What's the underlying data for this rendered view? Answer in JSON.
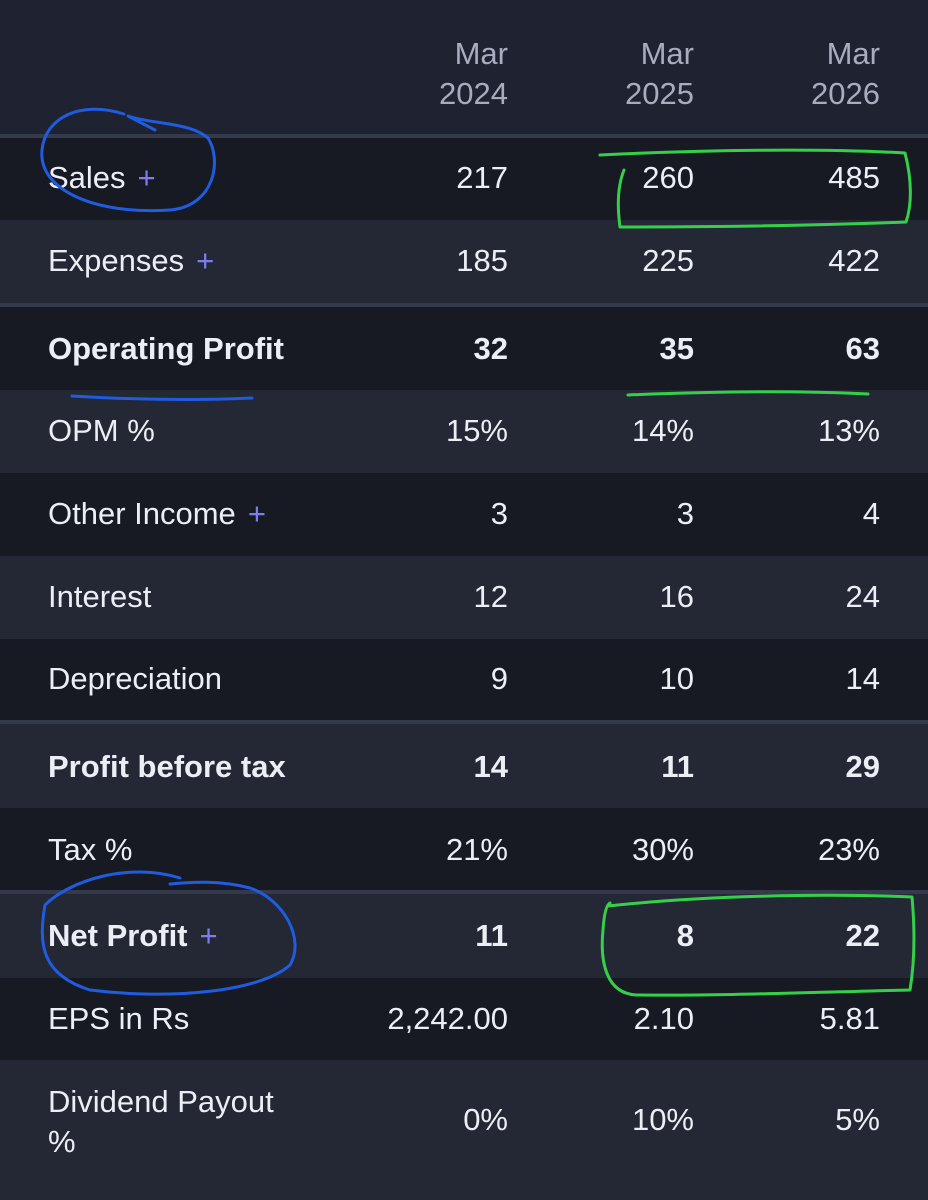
{
  "headers": [
    {
      "line1": "Mar",
      "line2": "2024"
    },
    {
      "line1": "Mar",
      "line2": "2025"
    },
    {
      "line1": "Mar",
      "line2": "2026"
    }
  ],
  "rows": [
    {
      "label": "Sales",
      "plus": "+",
      "values": [
        "217",
        "260",
        "485"
      ]
    },
    {
      "label": "Expenses",
      "plus": "+",
      "values": [
        "185",
        "225",
        "422"
      ]
    },
    {
      "label": "Operating Profit",
      "values": [
        "32",
        "35",
        "63"
      ]
    },
    {
      "label": "OPM %",
      "values": [
        "15%",
        "14%",
        "13%"
      ]
    },
    {
      "label": "Other Income",
      "plus": "+",
      "values": [
        "3",
        "3",
        "4"
      ]
    },
    {
      "label": "Interest",
      "values": [
        "12",
        "16",
        "24"
      ]
    },
    {
      "label": "Depreciation",
      "values": [
        "9",
        "10",
        "14"
      ]
    },
    {
      "label": "Profit before tax",
      "values": [
        "14",
        "11",
        "29"
      ]
    },
    {
      "label": "Tax %",
      "values": [
        "21%",
        "30%",
        "23%"
      ]
    },
    {
      "label": "Net Profit",
      "plus": "+",
      "values": [
        "11",
        "8",
        "22"
      ]
    },
    {
      "label": "EPS in Rs",
      "values": [
        "2,242.00",
        "2.10",
        "5.81"
      ]
    },
    {
      "label_line1": "Dividend Payout",
      "label_line2": "%",
      "values": [
        "0%",
        "10%",
        "5%"
      ]
    }
  ],
  "colors": {
    "background": "#1f2230",
    "row_dark": "#171a22",
    "row_light": "#242734",
    "plus_accent": "#7d7cf0",
    "header_text": "#a7acbf",
    "annotation_blue": "#1f5ce0",
    "annotation_green": "#35d04a"
  }
}
